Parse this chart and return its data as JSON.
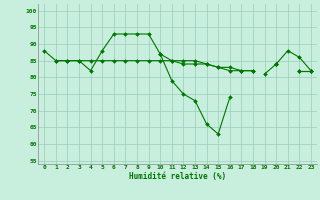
{
  "title": "",
  "xlabel": "Humidité relative (%)",
  "ylabel": "",
  "background_color": "#c8eedd",
  "grid_color": "#99ccbb",
  "line_color": "#007700",
  "x_values": [
    0,
    1,
    2,
    3,
    4,
    5,
    6,
    7,
    8,
    9,
    10,
    11,
    12,
    13,
    14,
    15,
    16,
    17,
    18,
    19,
    20,
    21,
    22,
    23
  ],
  "series1": [
    88,
    85,
    85,
    85,
    82,
    88,
    93,
    93,
    93,
    93,
    87,
    79,
    75,
    73,
    66,
    63,
    74,
    null,
    null,
    81,
    84,
    88,
    86,
    82
  ],
  "series2": [
    null,
    85,
    85,
    85,
    85,
    85,
    85,
    85,
    85,
    85,
    85,
    85,
    85,
    85,
    84,
    83,
    83,
    82,
    82,
    null,
    84,
    null,
    82,
    82
  ],
  "series3": [
    null,
    null,
    null,
    null,
    null,
    null,
    null,
    null,
    null,
    null,
    87,
    85,
    84,
    84,
    84,
    83,
    82,
    82,
    82,
    null,
    84,
    null,
    82,
    82
  ],
  "xlim": [
    -0.5,
    23.5
  ],
  "ylim": [
    54,
    102
  ],
  "yticks": [
    55,
    60,
    65,
    70,
    75,
    80,
    85,
    90,
    95,
    100
  ],
  "xticks": [
    0,
    1,
    2,
    3,
    4,
    5,
    6,
    7,
    8,
    9,
    10,
    11,
    12,
    13,
    14,
    15,
    16,
    17,
    18,
    19,
    20,
    21,
    22,
    23
  ]
}
